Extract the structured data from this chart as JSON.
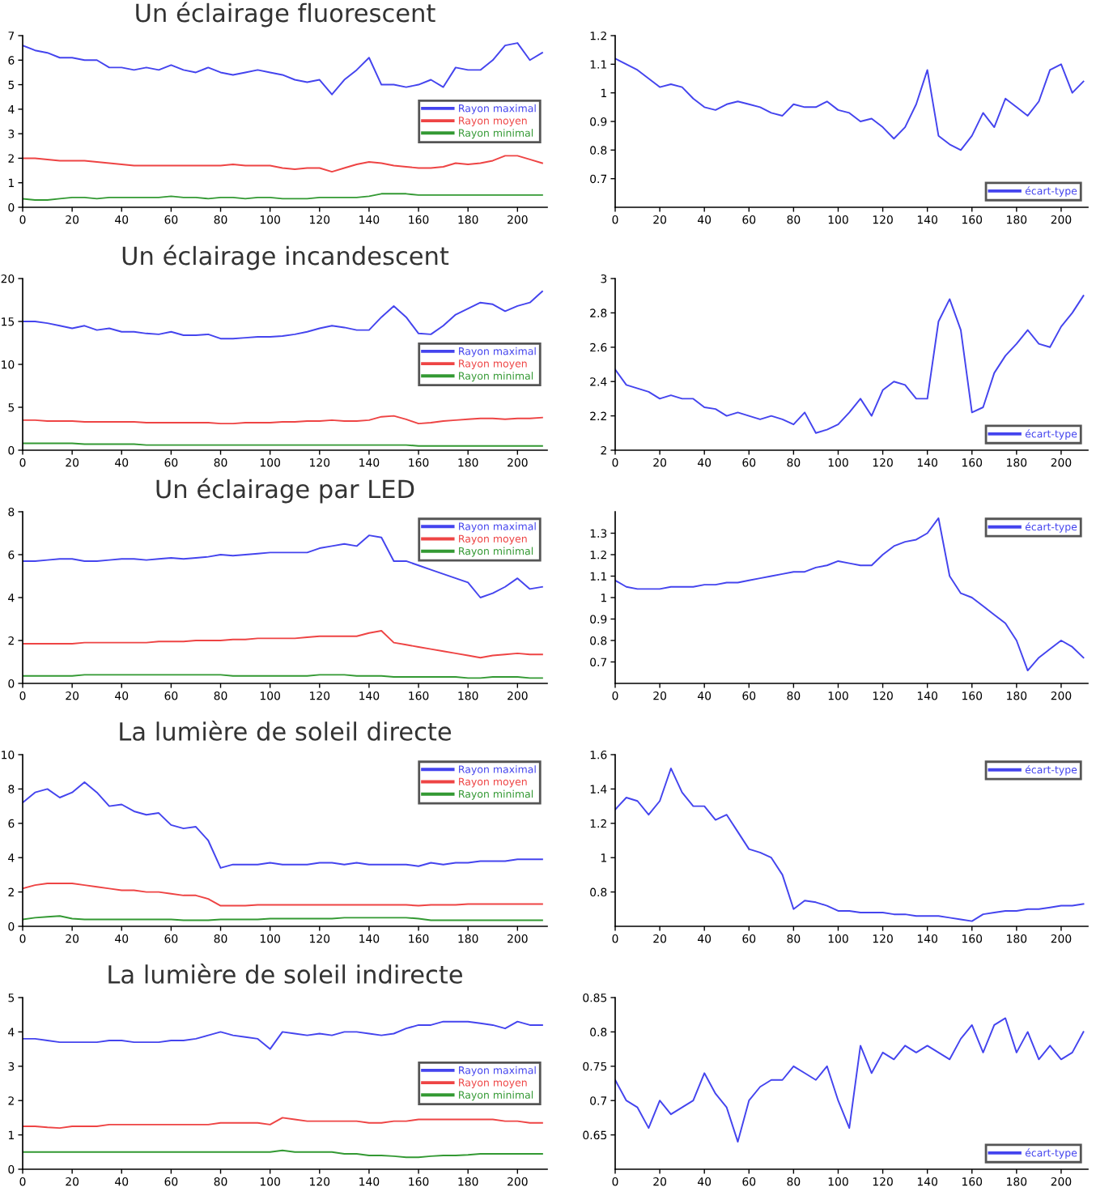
{
  "chart_data": [
    {
      "type": "line",
      "title": "Un éclairage fluorescent",
      "x": [
        0,
        5,
        10,
        15,
        20,
        25,
        30,
        35,
        40,
        45,
        50,
        55,
        60,
        65,
        70,
        75,
        80,
        85,
        90,
        95,
        100,
        105,
        110,
        115,
        120,
        125,
        130,
        135,
        140,
        145,
        150,
        155,
        160,
        165,
        170,
        175,
        180,
        185,
        190,
        195,
        200,
        205,
        210
      ],
      "xlim": [
        0,
        212
      ],
      "xticks": [
        0,
        20,
        40,
        60,
        80,
        100,
        120,
        140,
        160,
        180,
        200
      ],
      "ylim": [
        0,
        7
      ],
      "yticks": [
        0,
        1,
        2,
        3,
        4,
        5,
        6,
        7
      ],
      "legend": "right",
      "grid": false,
      "series": [
        {
          "name": "Rayon maximal",
          "color": "#4444ee",
          "values": [
            6.6,
            6.4,
            6.3,
            6.1,
            6.1,
            6.0,
            6.0,
            5.7,
            5.7,
            5.6,
            5.7,
            5.6,
            5.8,
            5.6,
            5.5,
            5.7,
            5.5,
            5.4,
            5.5,
            5.6,
            5.5,
            5.4,
            5.2,
            5.1,
            5.2,
            4.6,
            5.2,
            5.6,
            6.1,
            5.0,
            5.0,
            4.9,
            5.0,
            5.2,
            4.9,
            5.7,
            5.6,
            5.6,
            6.0,
            6.6,
            6.7,
            6.0,
            6.3
          ]
        },
        {
          "name": "Rayon moyen",
          "color": "#ee4444",
          "values": [
            2.0,
            2.0,
            1.95,
            1.9,
            1.9,
            1.9,
            1.85,
            1.8,
            1.75,
            1.7,
            1.7,
            1.7,
            1.7,
            1.7,
            1.7,
            1.7,
            1.7,
            1.75,
            1.7,
            1.7,
            1.7,
            1.6,
            1.55,
            1.6,
            1.6,
            1.45,
            1.6,
            1.75,
            1.85,
            1.8,
            1.7,
            1.65,
            1.6,
            1.6,
            1.65,
            1.8,
            1.75,
            1.8,
            1.9,
            2.1,
            2.1,
            1.95,
            1.8
          ]
        },
        {
          "name": "Rayon minimal",
          "color": "#339933",
          "values": [
            0.35,
            0.3,
            0.3,
            0.35,
            0.4,
            0.4,
            0.35,
            0.4,
            0.4,
            0.4,
            0.4,
            0.4,
            0.45,
            0.4,
            0.4,
            0.35,
            0.4,
            0.4,
            0.35,
            0.4,
            0.4,
            0.35,
            0.35,
            0.35,
            0.4,
            0.4,
            0.4,
            0.4,
            0.45,
            0.55,
            0.55,
            0.55,
            0.5,
            0.5,
            0.5,
            0.5,
            0.5,
            0.5,
            0.5,
            0.5,
            0.5,
            0.5,
            0.5
          ]
        }
      ]
    },
    {
      "type": "line",
      "x": [
        0,
        5,
        10,
        15,
        20,
        25,
        30,
        35,
        40,
        45,
        50,
        55,
        60,
        65,
        70,
        75,
        80,
        85,
        90,
        95,
        100,
        105,
        110,
        115,
        120,
        125,
        130,
        135,
        140,
        145,
        150,
        155,
        160,
        165,
        170,
        175,
        180,
        185,
        190,
        195,
        200,
        205,
        210
      ],
      "xlim": [
        0,
        212
      ],
      "xticks": [
        0,
        20,
        40,
        60,
        80,
        100,
        120,
        140,
        160,
        180,
        200
      ],
      "ylim": [
        0.6,
        1.2
      ],
      "yticks": [
        0.7,
        0.8,
        0.9,
        1,
        1.1,
        1.2
      ],
      "legend": "bottom right",
      "grid": false,
      "series": [
        {
          "name": "écart-type",
          "color": "#4444ee",
          "values": [
            1.12,
            1.1,
            1.08,
            1.05,
            1.02,
            1.03,
            1.02,
            0.98,
            0.95,
            0.94,
            0.96,
            0.97,
            0.96,
            0.95,
            0.93,
            0.92,
            0.96,
            0.95,
            0.95,
            0.97,
            0.94,
            0.93,
            0.9,
            0.91,
            0.88,
            0.84,
            0.88,
            0.96,
            1.08,
            0.85,
            0.82,
            0.8,
            0.85,
            0.93,
            0.88,
            0.98,
            0.95,
            0.92,
            0.97,
            1.08,
            1.1,
            1.0,
            1.04
          ]
        }
      ]
    },
    {
      "type": "line",
      "title": "Un éclairage incandescent",
      "x": [
        0,
        5,
        10,
        15,
        20,
        25,
        30,
        35,
        40,
        45,
        50,
        55,
        60,
        65,
        70,
        75,
        80,
        85,
        90,
        95,
        100,
        105,
        110,
        115,
        120,
        125,
        130,
        135,
        140,
        145,
        150,
        155,
        160,
        165,
        170,
        175,
        180,
        185,
        190,
        195,
        200,
        205,
        210
      ],
      "xlim": [
        0,
        212
      ],
      "xticks": [
        0,
        20,
        40,
        60,
        80,
        100,
        120,
        140,
        160,
        180,
        200
      ],
      "ylim": [
        0,
        20
      ],
      "yticks": [
        0,
        5,
        10,
        15,
        20
      ],
      "legend": "right",
      "grid": false,
      "series": [
        {
          "name": "Rayon maximal",
          "color": "#4444ee",
          "values": [
            15,
            15,
            14.8,
            14.5,
            14.2,
            14.5,
            14.0,
            14.2,
            13.8,
            13.8,
            13.6,
            13.5,
            13.8,
            13.4,
            13.4,
            13.5,
            13.0,
            13.0,
            13.1,
            13.2,
            13.2,
            13.3,
            13.5,
            13.8,
            14.2,
            14.5,
            14.3,
            14.0,
            14.0,
            15.5,
            16.8,
            15.5,
            13.6,
            13.5,
            14.5,
            15.8,
            16.5,
            17.2,
            17.0,
            16.2,
            16.8,
            17.2,
            18.5
          ]
        },
        {
          "name": "Rayon moyen",
          "color": "#ee4444",
          "values": [
            3.5,
            3.5,
            3.4,
            3.4,
            3.4,
            3.3,
            3.3,
            3.3,
            3.3,
            3.3,
            3.2,
            3.2,
            3.2,
            3.2,
            3.2,
            3.2,
            3.1,
            3.1,
            3.2,
            3.2,
            3.2,
            3.3,
            3.3,
            3.4,
            3.4,
            3.5,
            3.4,
            3.4,
            3.5,
            3.9,
            4.0,
            3.6,
            3.1,
            3.2,
            3.4,
            3.5,
            3.6,
            3.7,
            3.7,
            3.6,
            3.7,
            3.7,
            3.8
          ]
        },
        {
          "name": "Rayon minimal",
          "color": "#339933",
          "values": [
            0.8,
            0.8,
            0.8,
            0.8,
            0.8,
            0.7,
            0.7,
            0.7,
            0.7,
            0.7,
            0.6,
            0.6,
            0.6,
            0.6,
            0.6,
            0.6,
            0.6,
            0.6,
            0.6,
            0.6,
            0.6,
            0.6,
            0.6,
            0.6,
            0.6,
            0.6,
            0.6,
            0.6,
            0.6,
            0.6,
            0.6,
            0.6,
            0.5,
            0.5,
            0.5,
            0.5,
            0.5,
            0.5,
            0.5,
            0.5,
            0.5,
            0.5,
            0.5
          ]
        }
      ]
    },
    {
      "type": "line",
      "x": [
        0,
        5,
        10,
        15,
        20,
        25,
        30,
        35,
        40,
        45,
        50,
        55,
        60,
        65,
        70,
        75,
        80,
        85,
        90,
        95,
        100,
        105,
        110,
        115,
        120,
        125,
        130,
        135,
        140,
        145,
        150,
        155,
        160,
        165,
        170,
        175,
        180,
        185,
        190,
        195,
        200,
        205,
        210
      ],
      "xlim": [
        0,
        212
      ],
      "xticks": [
        0,
        20,
        40,
        60,
        80,
        100,
        120,
        140,
        160,
        180,
        200
      ],
      "ylim": [
        2,
        3
      ],
      "yticks": [
        2,
        2.2,
        2.4,
        2.6,
        2.8,
        3
      ],
      "legend": "bottom right",
      "grid": false,
      "series": [
        {
          "name": "écart-type",
          "color": "#4444ee",
          "values": [
            2.47,
            2.38,
            2.36,
            2.34,
            2.3,
            2.32,
            2.3,
            2.3,
            2.25,
            2.24,
            2.2,
            2.22,
            2.2,
            2.18,
            2.2,
            2.18,
            2.15,
            2.22,
            2.1,
            2.12,
            2.15,
            2.22,
            2.3,
            2.2,
            2.35,
            2.4,
            2.38,
            2.3,
            2.3,
            2.75,
            2.88,
            2.7,
            2.22,
            2.25,
            2.45,
            2.55,
            2.62,
            2.7,
            2.62,
            2.6,
            2.72,
            2.8,
            2.9
          ]
        }
      ]
    },
    {
      "type": "line",
      "title": "Un éclairage par LED",
      "x": [
        0,
        5,
        10,
        15,
        20,
        25,
        30,
        35,
        40,
        45,
        50,
        55,
        60,
        65,
        70,
        75,
        80,
        85,
        90,
        95,
        100,
        105,
        110,
        115,
        120,
        125,
        130,
        135,
        140,
        145,
        150,
        155,
        160,
        165,
        170,
        175,
        180,
        185,
        190,
        195,
        200,
        205,
        210
      ],
      "xlim": [
        0,
        212
      ],
      "xticks": [
        0,
        20,
        40,
        60,
        80,
        100,
        120,
        140,
        160,
        180,
        200
      ],
      "ylim": [
        0,
        8
      ],
      "yticks": [
        0,
        2,
        4,
        6,
        8
      ],
      "legend": "top right",
      "grid": false,
      "series": [
        {
          "name": "Rayon maximal",
          "color": "#4444ee",
          "values": [
            5.7,
            5.7,
            5.75,
            5.8,
            5.8,
            5.7,
            5.7,
            5.75,
            5.8,
            5.8,
            5.75,
            5.8,
            5.85,
            5.8,
            5.85,
            5.9,
            6.0,
            5.95,
            6.0,
            6.05,
            6.1,
            6.1,
            6.1,
            6.1,
            6.3,
            6.4,
            6.5,
            6.4,
            6.9,
            6.8,
            5.7,
            5.7,
            5.5,
            5.3,
            5.1,
            4.9,
            4.7,
            4.0,
            4.2,
            4.5,
            4.9,
            4.4,
            4.5
          ]
        },
        {
          "name": "Rayon moyen",
          "color": "#ee4444",
          "values": [
            1.85,
            1.85,
            1.85,
            1.85,
            1.85,
            1.9,
            1.9,
            1.9,
            1.9,
            1.9,
            1.9,
            1.95,
            1.95,
            1.95,
            2.0,
            2.0,
            2.0,
            2.05,
            2.05,
            2.1,
            2.1,
            2.1,
            2.1,
            2.15,
            2.2,
            2.2,
            2.2,
            2.2,
            2.35,
            2.45,
            1.9,
            1.8,
            1.7,
            1.6,
            1.5,
            1.4,
            1.3,
            1.2,
            1.3,
            1.35,
            1.4,
            1.35,
            1.35
          ]
        },
        {
          "name": "Rayon minimal",
          "color": "#339933",
          "values": [
            0.35,
            0.35,
            0.35,
            0.35,
            0.35,
            0.4,
            0.4,
            0.4,
            0.4,
            0.4,
            0.4,
            0.4,
            0.4,
            0.4,
            0.4,
            0.4,
            0.4,
            0.35,
            0.35,
            0.35,
            0.35,
            0.35,
            0.35,
            0.35,
            0.4,
            0.4,
            0.4,
            0.35,
            0.35,
            0.35,
            0.3,
            0.3,
            0.3,
            0.3,
            0.3,
            0.3,
            0.25,
            0.25,
            0.3,
            0.3,
            0.3,
            0.25,
            0.25
          ]
        }
      ]
    },
    {
      "type": "line",
      "x": [
        0,
        5,
        10,
        15,
        20,
        25,
        30,
        35,
        40,
        45,
        50,
        55,
        60,
        65,
        70,
        75,
        80,
        85,
        90,
        95,
        100,
        105,
        110,
        115,
        120,
        125,
        130,
        135,
        140,
        145,
        150,
        155,
        160,
        165,
        170,
        175,
        180,
        185,
        190,
        195,
        200,
        205,
        210
      ],
      "xlim": [
        0,
        212
      ],
      "xticks": [
        0,
        20,
        40,
        60,
        80,
        100,
        120,
        140,
        160,
        180,
        200
      ],
      "ylim": [
        0.6,
        1.4
      ],
      "yticks": [
        0.7,
        0.8,
        0.9,
        1,
        1.1,
        1.2,
        1.3
      ],
      "legend": "top right",
      "grid": false,
      "series": [
        {
          "name": "écart-type",
          "color": "#4444ee",
          "values": [
            1.08,
            1.05,
            1.04,
            1.04,
            1.04,
            1.05,
            1.05,
            1.05,
            1.06,
            1.06,
            1.07,
            1.07,
            1.08,
            1.09,
            1.1,
            1.11,
            1.12,
            1.12,
            1.14,
            1.15,
            1.17,
            1.16,
            1.15,
            1.15,
            1.2,
            1.24,
            1.26,
            1.27,
            1.3,
            1.37,
            1.1,
            1.02,
            1.0,
            0.96,
            0.92,
            0.88,
            0.8,
            0.66,
            0.72,
            0.76,
            0.8,
            0.77,
            0.72
          ]
        }
      ]
    },
    {
      "type": "line",
      "title": "La lumière de soleil directe",
      "x": [
        0,
        5,
        10,
        15,
        20,
        25,
        30,
        35,
        40,
        45,
        50,
        55,
        60,
        65,
        70,
        75,
        80,
        85,
        90,
        95,
        100,
        105,
        110,
        115,
        120,
        125,
        130,
        135,
        140,
        145,
        150,
        155,
        160,
        165,
        170,
        175,
        180,
        185,
        190,
        195,
        200,
        205,
        210
      ],
      "xlim": [
        0,
        212
      ],
      "xticks": [
        0,
        20,
        40,
        60,
        80,
        100,
        120,
        140,
        160,
        180,
        200
      ],
      "ylim": [
        0,
        10
      ],
      "yticks": [
        0,
        2,
        4,
        6,
        8,
        10
      ],
      "legend": "top right",
      "grid": false,
      "series": [
        {
          "name": "Rayon maximal",
          "color": "#4444ee",
          "values": [
            7.2,
            7.8,
            8.0,
            7.5,
            7.8,
            8.4,
            7.8,
            7.0,
            7.1,
            6.7,
            6.5,
            6.6,
            5.9,
            5.7,
            5.8,
            5.0,
            3.4,
            3.6,
            3.6,
            3.6,
            3.7,
            3.6,
            3.6,
            3.6,
            3.7,
            3.7,
            3.6,
            3.7,
            3.6,
            3.6,
            3.6,
            3.6,
            3.5,
            3.7,
            3.6,
            3.7,
            3.7,
            3.8,
            3.8,
            3.8,
            3.9,
            3.9,
            3.9
          ]
        },
        {
          "name": "Rayon moyen",
          "color": "#ee4444",
          "values": [
            2.2,
            2.4,
            2.5,
            2.5,
            2.5,
            2.4,
            2.3,
            2.2,
            2.1,
            2.1,
            2.0,
            2.0,
            1.9,
            1.8,
            1.8,
            1.6,
            1.2,
            1.2,
            1.2,
            1.25,
            1.25,
            1.25,
            1.25,
            1.25,
            1.25,
            1.25,
            1.25,
            1.25,
            1.25,
            1.25,
            1.25,
            1.25,
            1.2,
            1.25,
            1.25,
            1.25,
            1.3,
            1.3,
            1.3,
            1.3,
            1.3,
            1.3,
            1.3
          ]
        },
        {
          "name": "Rayon minimal",
          "color": "#339933",
          "values": [
            0.4,
            0.5,
            0.55,
            0.6,
            0.45,
            0.4,
            0.4,
            0.4,
            0.4,
            0.4,
            0.4,
            0.4,
            0.4,
            0.35,
            0.35,
            0.35,
            0.4,
            0.4,
            0.4,
            0.4,
            0.45,
            0.45,
            0.45,
            0.45,
            0.45,
            0.45,
            0.5,
            0.5,
            0.5,
            0.5,
            0.5,
            0.5,
            0.45,
            0.35,
            0.35,
            0.35,
            0.35,
            0.35,
            0.35,
            0.35,
            0.35,
            0.35,
            0.35
          ]
        }
      ]
    },
    {
      "type": "line",
      "x": [
        0,
        5,
        10,
        15,
        20,
        25,
        30,
        35,
        40,
        45,
        50,
        55,
        60,
        65,
        70,
        75,
        80,
        85,
        90,
        95,
        100,
        105,
        110,
        115,
        120,
        125,
        130,
        135,
        140,
        145,
        150,
        155,
        160,
        165,
        170,
        175,
        180,
        185,
        190,
        195,
        200,
        205,
        210
      ],
      "xlim": [
        0,
        212
      ],
      "xticks": [
        0,
        20,
        40,
        60,
        80,
        100,
        120,
        140,
        160,
        180,
        200
      ],
      "ylim": [
        0.6,
        1.6
      ],
      "yticks": [
        0.8,
        1,
        1.2,
        1.4,
        1.6
      ],
      "legend": "top right",
      "grid": false,
      "series": [
        {
          "name": "écart-type",
          "color": "#4444ee",
          "values": [
            1.28,
            1.35,
            1.33,
            1.25,
            1.33,
            1.52,
            1.38,
            1.3,
            1.3,
            1.22,
            1.25,
            1.15,
            1.05,
            1.03,
            1.0,
            0.9,
            0.7,
            0.75,
            0.74,
            0.72,
            0.69,
            0.69,
            0.68,
            0.68,
            0.68,
            0.67,
            0.67,
            0.66,
            0.66,
            0.66,
            0.65,
            0.64,
            0.63,
            0.67,
            0.68,
            0.69,
            0.69,
            0.7,
            0.7,
            0.71,
            0.72,
            0.72,
            0.73
          ]
        }
      ]
    },
    {
      "type": "line",
      "title": "La lumière de soleil indirecte",
      "x": [
        0,
        5,
        10,
        15,
        20,
        25,
        30,
        35,
        40,
        45,
        50,
        55,
        60,
        65,
        70,
        75,
        80,
        85,
        90,
        95,
        100,
        105,
        110,
        115,
        120,
        125,
        130,
        135,
        140,
        145,
        150,
        155,
        160,
        165,
        170,
        175,
        180,
        185,
        190,
        195,
        200,
        205,
        210
      ],
      "xlim": [
        0,
        212
      ],
      "xticks": [
        0,
        20,
        40,
        60,
        80,
        100,
        120,
        140,
        160,
        180,
        200
      ],
      "ylim": [
        0,
        5
      ],
      "yticks": [
        0,
        1,
        2,
        3,
        4,
        5
      ],
      "legend": "right",
      "grid": false,
      "series": [
        {
          "name": "Rayon maximal",
          "color": "#4444ee",
          "values": [
            3.8,
            3.8,
            3.75,
            3.7,
            3.7,
            3.7,
            3.7,
            3.75,
            3.75,
            3.7,
            3.7,
            3.7,
            3.75,
            3.75,
            3.8,
            3.9,
            4.0,
            3.9,
            3.85,
            3.8,
            3.5,
            4.0,
            3.95,
            3.9,
            3.95,
            3.9,
            4.0,
            4.0,
            3.95,
            3.9,
            3.95,
            4.1,
            4.2,
            4.2,
            4.3,
            4.3,
            4.3,
            4.25,
            4.2,
            4.1,
            4.3,
            4.2,
            4.2
          ]
        },
        {
          "name": "Rayon moyen",
          "color": "#ee4444",
          "values": [
            1.25,
            1.25,
            1.22,
            1.2,
            1.25,
            1.25,
            1.25,
            1.3,
            1.3,
            1.3,
            1.3,
            1.3,
            1.3,
            1.3,
            1.3,
            1.3,
            1.35,
            1.35,
            1.35,
            1.35,
            1.3,
            1.5,
            1.45,
            1.4,
            1.4,
            1.4,
            1.4,
            1.4,
            1.35,
            1.35,
            1.4,
            1.4,
            1.45,
            1.45,
            1.45,
            1.45,
            1.45,
            1.45,
            1.45,
            1.4,
            1.4,
            1.35,
            1.35
          ]
        },
        {
          "name": "Rayon minimal",
          "color": "#339933",
          "values": [
            0.5,
            0.5,
            0.5,
            0.5,
            0.5,
            0.5,
            0.5,
            0.5,
            0.5,
            0.5,
            0.5,
            0.5,
            0.5,
            0.5,
            0.5,
            0.5,
            0.5,
            0.5,
            0.5,
            0.5,
            0.5,
            0.55,
            0.5,
            0.5,
            0.5,
            0.5,
            0.45,
            0.45,
            0.4,
            0.4,
            0.38,
            0.35,
            0.35,
            0.38,
            0.4,
            0.4,
            0.42,
            0.45,
            0.45,
            0.45,
            0.45,
            0.45,
            0.45
          ]
        }
      ]
    },
    {
      "type": "line",
      "x": [
        0,
        5,
        10,
        15,
        20,
        25,
        30,
        35,
        40,
        45,
        50,
        55,
        60,
        65,
        70,
        75,
        80,
        85,
        90,
        95,
        100,
        105,
        110,
        115,
        120,
        125,
        130,
        135,
        140,
        145,
        150,
        155,
        160,
        165,
        170,
        175,
        180,
        185,
        190,
        195,
        200,
        205,
        210
      ],
      "xlim": [
        0,
        212
      ],
      "xticks": [
        0,
        20,
        40,
        60,
        80,
        100,
        120,
        140,
        160,
        180,
        200
      ],
      "ylim": [
        0.6,
        0.85
      ],
      "yticks": [
        0.65,
        0.7,
        0.75,
        0.8,
        0.85
      ],
      "legend": "bottom right",
      "grid": false,
      "series": [
        {
          "name": "écart-type",
          "color": "#4444ee",
          "values": [
            0.73,
            0.7,
            0.69,
            0.66,
            0.7,
            0.68,
            0.69,
            0.7,
            0.74,
            0.71,
            0.69,
            0.64,
            0.7,
            0.72,
            0.73,
            0.73,
            0.75,
            0.74,
            0.73,
            0.75,
            0.7,
            0.66,
            0.78,
            0.74,
            0.77,
            0.76,
            0.78,
            0.77,
            0.78,
            0.77,
            0.76,
            0.79,
            0.81,
            0.77,
            0.81,
            0.82,
            0.77,
            0.8,
            0.76,
            0.78,
            0.76,
            0.77,
            0.8
          ]
        }
      ]
    }
  ]
}
